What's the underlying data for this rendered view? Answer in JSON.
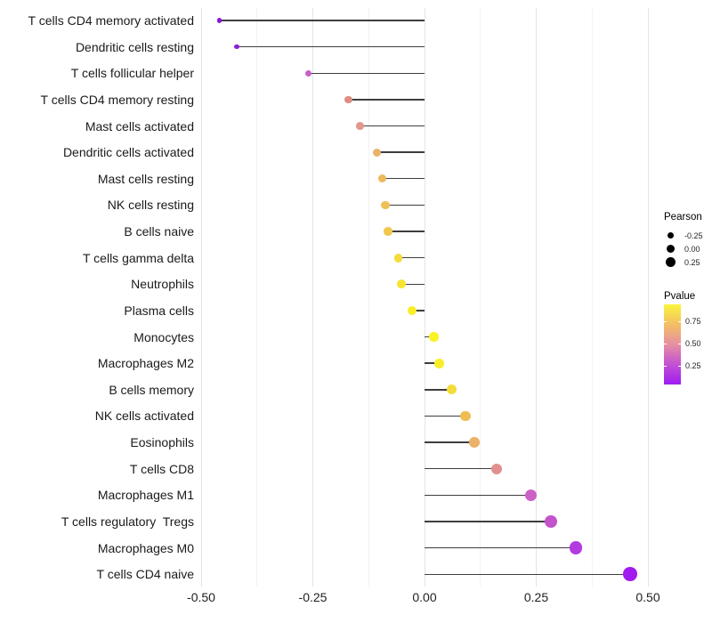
{
  "chart_data": {
    "type": "lollipop",
    "title": "",
    "xlabel": "",
    "ylabel": "",
    "grid": "vertical-only",
    "x_range": [
      -0.51,
      0.51
    ],
    "x_tick_values": [
      -0.5,
      -0.25,
      0.0,
      0.25,
      0.5
    ],
    "x_tick_labels": [
      "-0.50",
      "-0.25",
      "0.00",
      "0.25",
      "0.50"
    ],
    "categories": [
      "T cells CD4 memory activated",
      "Dendritic cells resting",
      "T cells follicular helper",
      "T cells CD4 memory resting",
      "Mast cells activated",
      "Dendritic cells activated",
      "Mast cells resting",
      "NK cells resting",
      "B cells naive",
      "T cells gamma delta",
      "Neutrophils",
      "Plasma cells",
      "Monocytes",
      "Macrophages M2",
      "B cells memory",
      "NK cells activated",
      "Eosinophils",
      "T cells CD8",
      "Macrophages M1",
      "T cells regulatory  Tregs",
      "Macrophages M0",
      "T cells CD4 naive"
    ],
    "series": [
      {
        "name": "Pearson",
        "values": [
          -0.46,
          -0.42,
          -0.26,
          -0.17,
          -0.145,
          -0.106,
          -0.094,
          -0.088,
          -0.082,
          -0.059,
          -0.051,
          -0.027,
          0.021,
          0.033,
          0.061,
          0.092,
          0.111,
          0.161,
          0.238,
          0.283,
          0.338,
          0.46
        ]
      },
      {
        "name": "Pvalue_estimated_from_color",
        "values": [
          0.03,
          0.05,
          0.28,
          0.47,
          0.5,
          0.62,
          0.65,
          0.67,
          0.7,
          0.77,
          0.8,
          0.86,
          0.88,
          0.85,
          0.76,
          0.67,
          0.62,
          0.49,
          0.29,
          0.26,
          0.17,
          0.05
        ]
      }
    ],
    "dot_colors": [
      "#8816DF",
      "#8D1FD6",
      "#C75FC8",
      "#E08D85",
      "#E2978A",
      "#EAB168",
      "#ECB95C",
      "#EEBF54",
      "#F0C84B",
      "#F5DC3B",
      "#F7E532",
      "#F9EE27",
      "#FAF222",
      "#F9ED28",
      "#F6DC3A",
      "#EFBD54",
      "#EAB16B",
      "#E2908F",
      "#CC60C6",
      "#C553CC",
      "#B33BE0",
      "#A21BEF"
    ],
    "stick_color": "#3e3e3e",
    "legend": {
      "size_legend": {
        "title": "Pearson",
        "labels": [
          "-0.25",
          "0.00",
          "0.25"
        ],
        "dot_color": "#000000"
      },
      "color_legend": {
        "title": "Pvalue",
        "tick_labels": [
          "0.75",
          "0.50",
          "0.25"
        ],
        "gradient_bottom_to_top": [
          "#9E1CF2",
          "#C24ED4",
          "#E690A2",
          "#F2BC67",
          "#FAF53C"
        ]
      },
      "position": "right"
    }
  }
}
